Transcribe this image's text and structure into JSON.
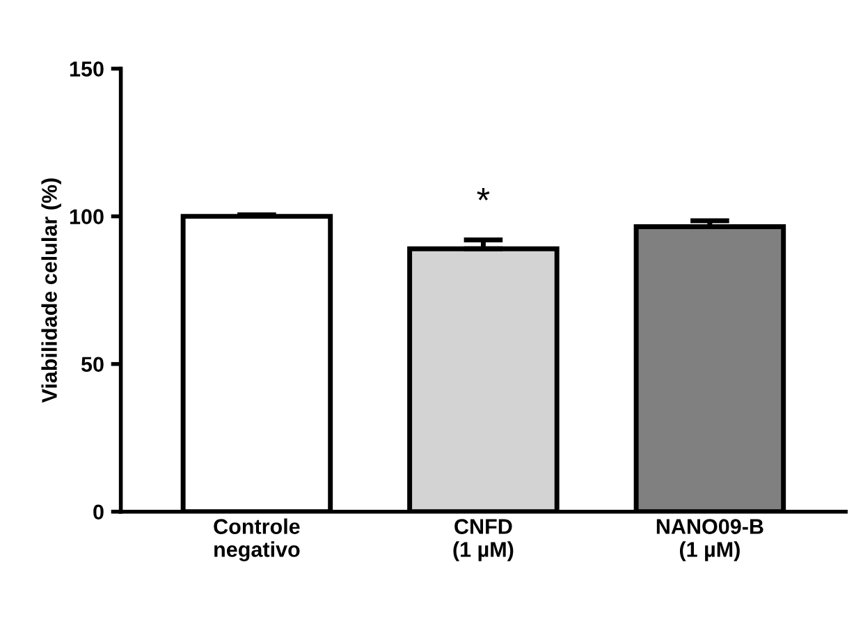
{
  "chart_data": {
    "type": "bar",
    "ylabel": "Viabilidade celular (%)",
    "categories": [
      "Controle\nnegativo",
      "CNFD\n(1 µM)",
      "NANO09-B\n(1 µM)"
    ],
    "values": [
      100,
      89,
      96.5
    ],
    "errors": [
      [
        100,
        100.5
      ],
      [
        89,
        92
      ],
      [
        96.5,
        98.5
      ]
    ],
    "colors": [
      "#ffffff",
      "#d3d3d3",
      "#808080"
    ],
    "ylim": [
      0,
      150
    ],
    "yticks": [
      0,
      50,
      100,
      150
    ],
    "annotations": [
      "*"
    ],
    "grid": false
  }
}
